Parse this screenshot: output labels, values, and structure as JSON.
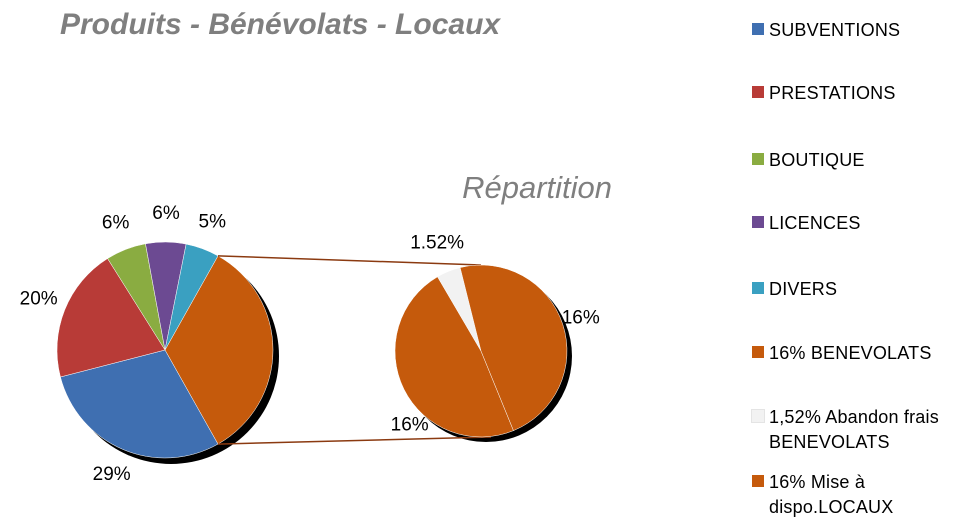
{
  "chart_data": {
    "type": "pie-of-pie",
    "title": "Produits - Bénévolats - Locaux",
    "subtitle": "Répartition",
    "categories": [
      "SUBVENTIONS",
      "PRESTATIONS",
      "BOUTIQUE",
      "LICENCES",
      "DIVERS",
      "16% BENEVOLATS",
      "1,52% Abandon frais BENEVOLATS",
      "16% Mise à dispo.LOCAUX"
    ],
    "values": [
      29,
      20,
      6,
      6,
      5,
      16,
      1.52,
      16
    ],
    "value_labels": [
      "29%",
      "20%",
      "6%",
      "6%",
      "5%",
      "16%",
      "1.52%",
      "16%"
    ],
    "colors": [
      "#3f6fb1",
      "#b83b37",
      "#8aac41",
      "#6c4a92",
      "#3aa0c1",
      "#c55a0c",
      "#f2f2f2",
      "#c55a0c"
    ],
    "second_plot_values": 3,
    "legend": "right"
  }
}
